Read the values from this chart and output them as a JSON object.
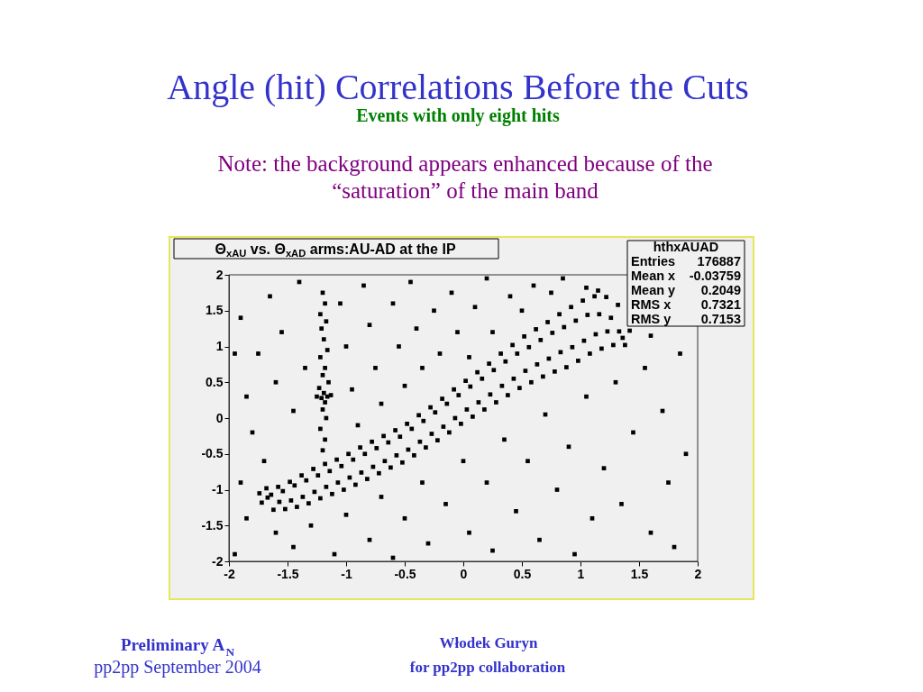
{
  "chart_data": {
    "type": "scatter",
    "title": "Angle (hit) Correlations Before the Cuts",
    "subtitle": "Events with only eight hits",
    "annotations": [
      "Θ$_{xAU}$ vs. Θ$_{xAD}$ arms:AU-AD at the IP",
      "hthxAUAD",
      "Entries",
      "176887",
      "Mean x",
      "-0.03759",
      "Mean y",
      "0.2049",
      "RMS x",
      "0.7321",
      "RMS y",
      "0.7153",
      "Note: the background appears enhanced because of the",
      "“saturation” of the main band",
      "Preliminary A$_{N}$",
      "pp2pp September 2004",
      "Włodek Guryn",
      "for pp2pp collaboration"
    ],
    "xlim": [
      -2,
      2
    ],
    "ylim": [
      -2,
      2
    ],
    "xticks": [
      -2,
      -1.5,
      -1,
      -0.5,
      0,
      0.5,
      1,
      1.5,
      2
    ],
    "yticks": [
      -2,
      -1.5,
      -1,
      -0.5,
      0,
      0.5,
      1,
      1.5,
      2
    ],
    "marker": "square",
    "series": [
      {
        "color": "#000000",
        "x": [
          -1.72,
          -1.67,
          -1.74,
          -1.68,
          -1.62,
          -1.57,
          -1.64,
          -1.58,
          -1.52,
          -1.47,
          -1.54,
          -1.48,
          -1.42,
          -1.37,
          -1.44,
          -1.38,
          -1.32,
          -1.27,
          -1.34,
          -1.28,
          -1.22,
          -1.17,
          -1.24,
          -1.18,
          -1.12,
          -1.07,
          -1.14,
          -1.08,
          -1.02,
          -0.97,
          -1.04,
          -0.98,
          -0.92,
          -0.87,
          -0.94,
          -0.88,
          -0.82,
          -0.77,
          -0.84,
          -0.78,
          -0.72,
          -0.67,
          -0.74,
          -0.68,
          -0.62,
          -0.57,
          -0.64,
          -0.58,
          -0.52,
          -0.47,
          -0.54,
          -0.48,
          -0.42,
          -0.37,
          -0.44,
          -0.38,
          -0.32,
          -0.27,
          -0.34,
          -0.28,
          -0.22,
          -0.17,
          -0.24,
          -0.18,
          -0.12,
          -0.07,
          -0.14,
          -0.08,
          -0.02,
          0.03,
          -0.04,
          0.02,
          0.08,
          0.13,
          0.06,
          0.12,
          0.18,
          0.23,
          0.16,
          0.22,
          0.28,
          0.33,
          0.26,
          0.32,
          0.38,
          0.43,
          0.36,
          0.42,
          0.48,
          0.53,
          0.46,
          0.52,
          0.58,
          0.63,
          0.56,
          0.62,
          0.68,
          0.73,
          0.66,
          0.72,
          0.78,
          0.83,
          0.76,
          0.82,
          0.88,
          0.93,
          0.86,
          0.92,
          0.98,
          1.03,
          0.96,
          1.02,
          1.08,
          1.13,
          1.06,
          1.12,
          1.18,
          1.23,
          1.16,
          1.22,
          1.28,
          1.33,
          1.26,
          1.32,
          1.38,
          1.36,
          1.42,
          1.05,
          1.15
        ],
        "values": [
          -1.18,
          -1.11,
          -1.05,
          -0.98,
          -1.28,
          -1.17,
          -1.07,
          -0.96,
          -1.27,
          -1.15,
          -1.02,
          -0.89,
          -1.24,
          -1.1,
          -0.94,
          -0.8,
          -1.19,
          -1.03,
          -0.87,
          -0.71,
          -1.12,
          -0.96,
          -0.8,
          -0.64,
          -1.06,
          -0.9,
          -0.74,
          -0.58,
          -1.0,
          -0.83,
          -0.67,
          -0.5,
          -0.93,
          -0.76,
          -0.58,
          -0.41,
          -0.85,
          -0.68,
          -0.5,
          -0.33,
          -0.77,
          -0.6,
          -0.42,
          -0.25,
          -0.69,
          -0.52,
          -0.34,
          -0.17,
          -0.62,
          -0.44,
          -0.26,
          -0.08,
          -0.52,
          -0.33,
          -0.15,
          0.04,
          -0.41,
          -0.22,
          -0.04,
          0.15,
          -0.31,
          -0.12,
          0.08,
          0.27,
          -0.2,
          0.0,
          0.2,
          0.4,
          -0.08,
          0.12,
          0.32,
          0.52,
          0.02,
          0.22,
          0.44,
          0.64,
          0.12,
          0.33,
          0.55,
          0.76,
          0.22,
          0.45,
          0.67,
          0.9,
          0.32,
          0.55,
          0.79,
          1.02,
          0.42,
          0.66,
          0.9,
          1.14,
          0.5,
          0.75,
          0.99,
          1.24,
          0.58,
          0.83,
          1.09,
          1.34,
          0.65,
          0.92,
          1.19,
          1.45,
          0.71,
          0.99,
          1.27,
          1.55,
          0.8,
          1.08,
          1.36,
          1.64,
          0.9,
          1.17,
          1.44,
          1.7,
          0.97,
          1.21,
          1.45,
          1.69,
          1.02,
          1.21,
          1.4,
          1.58,
          1.02,
          1.12,
          1.22,
          1.82,
          1.78
        ]
      },
      {
        "color": "#000000",
        "x": [
          -1.2,
          -1.18,
          -1.22,
          -1.17,
          -1.21,
          -1.19,
          -1.16,
          -1.22,
          -1.18,
          -1.2,
          -1.15,
          -1.23,
          -1.19,
          -1.16,
          -1.21,
          -1.18,
          -1.13,
          -1.25,
          -1.2,
          -1.17,
          -1.22,
          -1.18,
          -1.2,
          -1.9,
          -1.75,
          -1.85,
          -1.65,
          -1.55,
          -1.6,
          -1.45,
          -1.4,
          -1.35,
          -1.05,
          -1.0,
          -0.95,
          -0.9,
          -0.85,
          -0.8,
          -0.75,
          -0.7,
          -0.6,
          -0.55,
          -0.5,
          -0.45,
          -0.4,
          -0.35,
          -0.25,
          -0.2,
          -0.1,
          -0.05,
          0.05,
          0.1,
          0.2,
          0.25,
          0.4,
          0.5,
          0.6,
          0.75,
          0.85,
          -1.95,
          -1.8,
          -1.7,
          -1.9,
          -1.6,
          -1.45,
          -1.3,
          -1.1,
          -1.0,
          -0.8,
          -0.7,
          -0.6,
          -0.5,
          -0.35,
          -0.3,
          -0.15,
          0.0,
          0.05,
          0.2,
          0.25,
          0.35,
          0.45,
          0.55,
          0.65,
          0.7,
          0.8,
          0.9,
          0.95,
          1.05,
          1.1,
          1.2,
          1.3,
          1.35,
          1.45,
          1.55,
          1.6,
          1.7,
          1.75,
          1.85,
          1.9,
          1.6,
          1.8,
          -1.85,
          -1.95
        ],
        "values": [
          1.75,
          1.6,
          1.45,
          1.35,
          1.25,
          1.1,
          0.95,
          0.85,
          0.7,
          0.6,
          0.5,
          0.42,
          0.35,
          0.3,
          0.28,
          0.22,
          0.32,
          0.3,
          0.12,
          0.0,
          -0.15,
          -0.3,
          -0.45,
          1.4,
          0.9,
          0.3,
          1.7,
          1.2,
          0.5,
          0.1,
          1.9,
          0.7,
          1.6,
          1.0,
          0.4,
          -0.1,
          1.85,
          1.3,
          0.7,
          0.2,
          1.6,
          1.0,
          0.45,
          1.9,
          1.25,
          0.7,
          1.5,
          0.9,
          1.75,
          1.2,
          0.85,
          1.55,
          1.95,
          1.2,
          1.7,
          1.5,
          1.85,
          1.75,
          1.95,
          0.9,
          -0.2,
          -0.6,
          -0.9,
          -1.6,
          -1.8,
          -1.5,
          -1.9,
          -1.35,
          -1.7,
          -1.1,
          -1.95,
          -1.4,
          -0.9,
          -1.75,
          -1.2,
          -0.6,
          -1.6,
          -0.9,
          -1.85,
          -0.3,
          -1.3,
          -0.6,
          -1.7,
          0.05,
          -1.0,
          -0.4,
          -1.9,
          0.3,
          -1.4,
          -0.7,
          0.5,
          -1.2,
          -0.2,
          0.7,
          -1.6,
          0.1,
          -0.9,
          0.9,
          -0.5,
          1.15,
          -1.8,
          -1.4,
          -1.9
        ]
      }
    ]
  }
}
